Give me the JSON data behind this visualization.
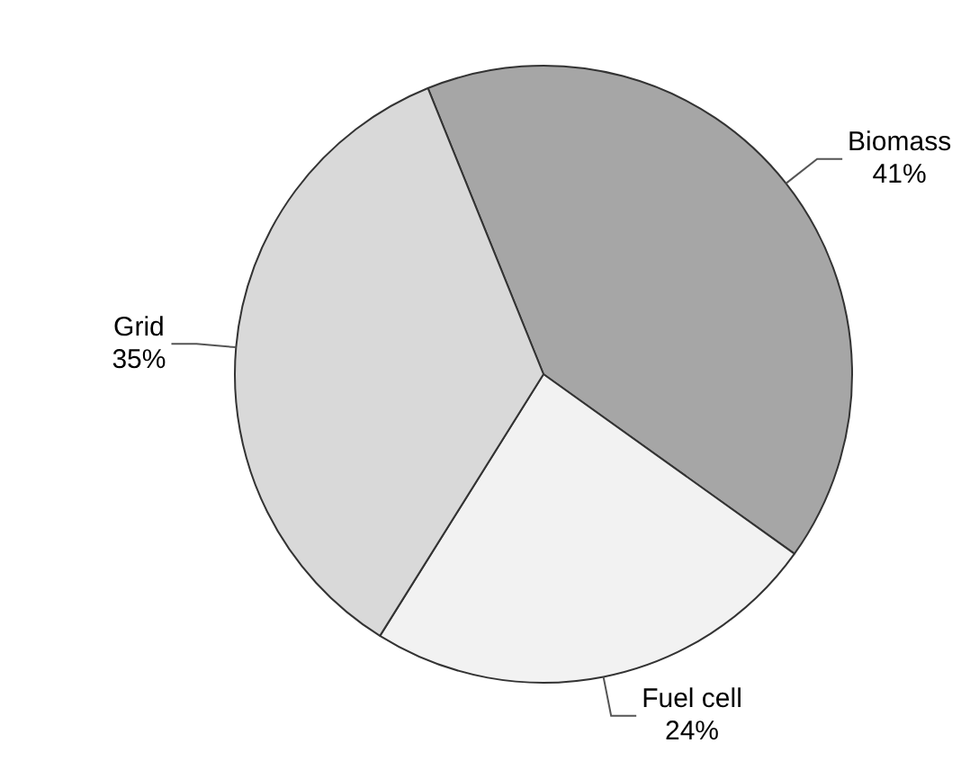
{
  "chart_data": {
    "type": "pie",
    "categories": [
      "Biomass",
      "Fuel cell",
      "Grid"
    ],
    "values": [
      41,
      24,
      35
    ],
    "value_labels": [
      "41%",
      "24%",
      "35%"
    ],
    "colors": [
      "#a6a6a6",
      "#f2f2f2",
      "#d9d9d9"
    ],
    "legend": false
  }
}
